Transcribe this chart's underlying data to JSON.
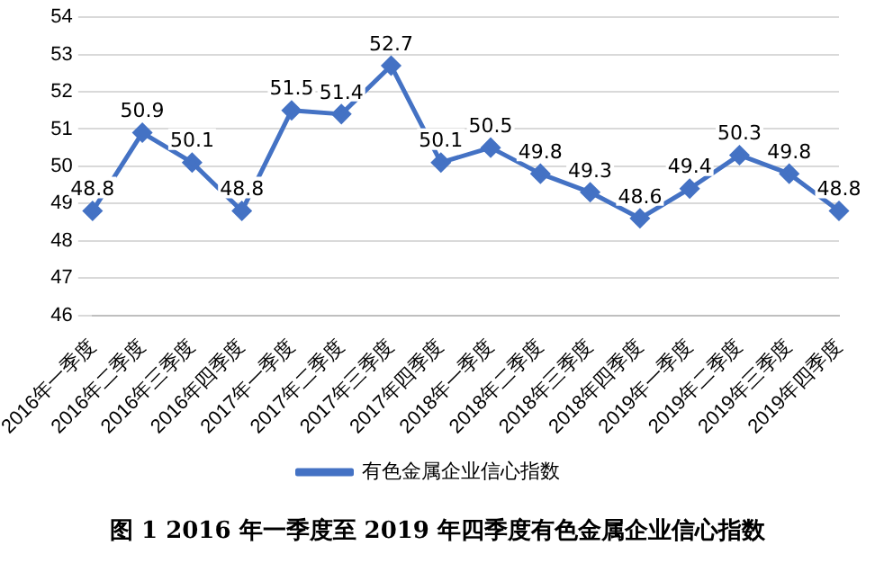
{
  "chart_data": {
    "type": "line",
    "title": "图 1 2016 年一季度至 2019 年四季度有色金属企业信心指数",
    "categories": [
      "2016年一季度",
      "2016年二季度",
      "2016年三季度",
      "2016年四季度",
      "2017年一季度",
      "2017年二季度",
      "2017年三季度",
      "2017年四季度",
      "2018年一季度",
      "2018年二季度",
      "2018年三季度",
      "2018年四季度",
      "2019年一季度",
      "2019年二季度",
      "2019年三季度",
      "2019年四季度"
    ],
    "series": [
      {
        "name": "有色金属企业信心指数",
        "color": "#4472c4",
        "values": [
          48.8,
          50.9,
          50.1,
          48.8,
          51.5,
          51.4,
          52.7,
          50.1,
          50.5,
          49.8,
          49.3,
          48.6,
          49.4,
          50.3,
          49.8,
          48.8
        ]
      }
    ],
    "ylim": [
      46,
      54
    ],
    "yticks": [
      46,
      47,
      48,
      49,
      50,
      51,
      52,
      53,
      54
    ],
    "grid": "y",
    "legend": "bottom",
    "marker": "diamond",
    "line_style": "solid",
    "data_labels": true
  }
}
